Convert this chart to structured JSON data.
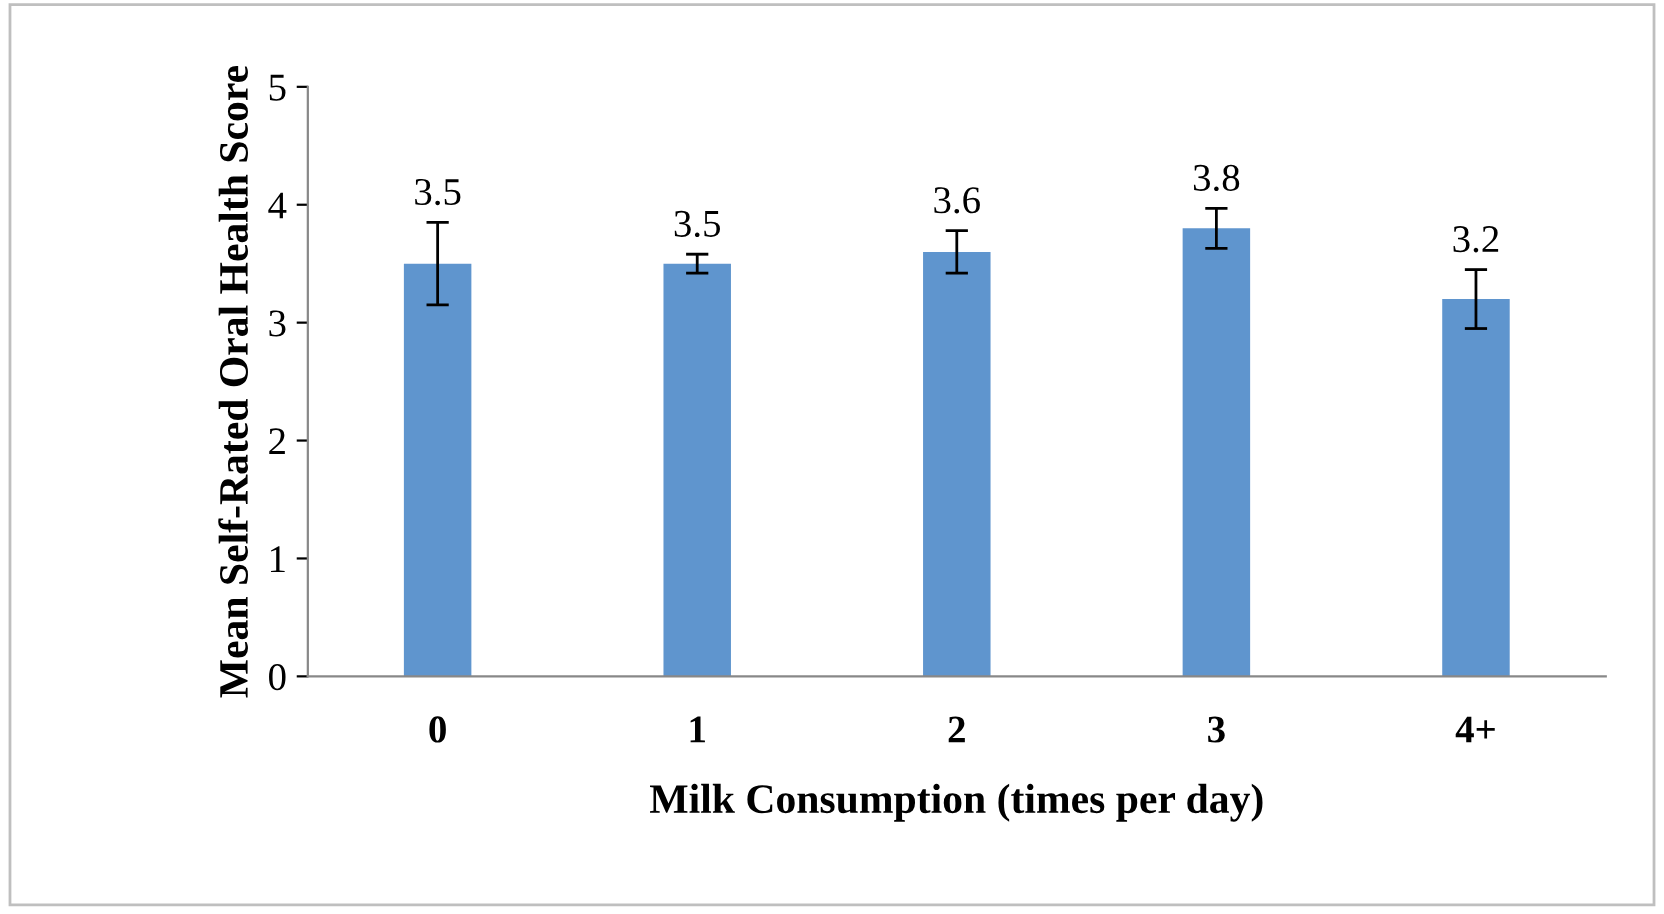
{
  "chart_data": {
    "type": "bar",
    "xlabel": "Milk Consumption (times per day)",
    "ylabel": "Mean Self-Rated Oral Health Score",
    "categories": [
      "0",
      "1",
      "2",
      "3",
      "4+"
    ],
    "values": [
      3.5,
      3.5,
      3.6,
      3.8,
      3.2
    ],
    "errors": [
      0.35,
      0.08,
      0.18,
      0.17,
      0.25
    ],
    "color": "#5f95ce",
    "ylim": [
      0,
      5
    ],
    "yticks": [
      0,
      1,
      2,
      3,
      4,
      5
    ],
    "grid": false,
    "legend": false,
    "data_labels": true
  }
}
